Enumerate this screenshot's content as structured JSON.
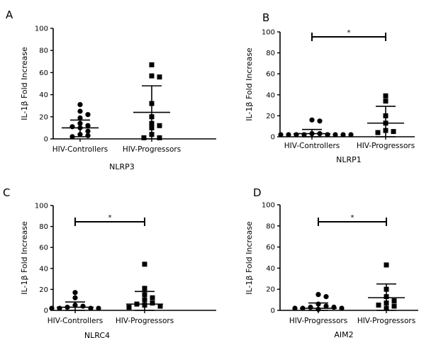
{
  "chart_data": [
    {
      "type": "scatter",
      "panel": "A",
      "title": "NLRP3",
      "ylabel": "IL-1β Fold Increase",
      "ylim": [
        0,
        100
      ],
      "yticks": [
        0,
        20,
        40,
        60,
        80,
        100
      ],
      "categories": [
        "HIV-Controllers",
        "HIV-Progressors"
      ],
      "series": [
        {
          "name": "HIV-Controllers",
          "marker": "circle",
          "values": [
            31,
            25,
            22,
            19,
            14,
            12,
            11,
            10,
            7,
            4,
            3,
            2
          ],
          "mean": 10,
          "sd_upper": 17,
          "sd_lower": 2
        },
        {
          "name": "HIV-Progressors",
          "marker": "square",
          "values": [
            67,
            57,
            56,
            32,
            20,
            14,
            12,
            10,
            4,
            1,
            1
          ],
          "mean": 24,
          "sd_upper": 48,
          "sd_lower": 0
        }
      ],
      "significance": null
    },
    {
      "type": "scatter",
      "panel": "B",
      "title": "NLRP1",
      "ylabel": "IL-1β Fold Increase",
      "ylim": [
        0,
        100
      ],
      "yticks": [
        0,
        20,
        40,
        60,
        80,
        100
      ],
      "categories": [
        "HIV-Controllers",
        "HIV-Progressors"
      ],
      "series": [
        {
          "name": "HIV-Controllers",
          "marker": "circle",
          "values": [
            16,
            15,
            3,
            3,
            2,
            2,
            2,
            2,
            2,
            2,
            2,
            2
          ],
          "mean": 3,
          "sd_upper": 7,
          "sd_lower": 0
        },
        {
          "name": "HIV-Progressors",
          "marker": "square",
          "values": [
            39,
            34,
            20,
            13,
            6,
            5,
            4
          ],
          "mean": 13,
          "sd_upper": 29,
          "sd_lower": 0
        }
      ],
      "significance": "*"
    },
    {
      "type": "scatter",
      "panel": "C",
      "title": "NLRC4",
      "ylabel": "IL-1β Fold Increase",
      "ylim": [
        0,
        100
      ],
      "yticks": [
        0,
        20,
        40,
        60,
        80,
        100
      ],
      "categories": [
        "HIV-Controllers",
        "HIV-Progressors"
      ],
      "series": [
        {
          "name": "HIV-Controllers",
          "marker": "circle",
          "values": [
            17,
            12,
            5,
            4,
            3,
            2,
            2,
            2,
            2
          ],
          "mean": 3,
          "sd_upper": 8,
          "sd_lower": 0
        },
        {
          "name": "HIV-Progressors",
          "marker": "square",
          "values": [
            44,
            21,
            15,
            12,
            10,
            7,
            6,
            5,
            4,
            3
          ],
          "mean": 6,
          "sd_upper": 18,
          "sd_lower": 0
        }
      ],
      "significance": "*"
    },
    {
      "type": "scatter",
      "panel": "D",
      "title": "AIM2",
      "ylabel": "IL-1β Fold Increase",
      "ylim": [
        0,
        100
      ],
      "yticks": [
        0,
        20,
        40,
        60,
        80,
        100
      ],
      "categories": [
        "HIV-Progressors",
        "HIV-Progressors"
      ],
      "series": [
        {
          "name": "HIV-Progressors",
          "marker": "circle",
          "values": [
            15,
            13,
            6,
            4,
            3,
            3,
            2,
            2,
            2,
            1
          ],
          "mean": 2,
          "sd_upper": 7,
          "sd_lower": 0
        },
        {
          "name": "HIV-Progressors",
          "marker": "square",
          "values": [
            43,
            20,
            13,
            9,
            7,
            5,
            4,
            2
          ],
          "mean": 12,
          "sd_upper": 25,
          "sd_lower": 0
        }
      ],
      "significance": "*"
    }
  ]
}
